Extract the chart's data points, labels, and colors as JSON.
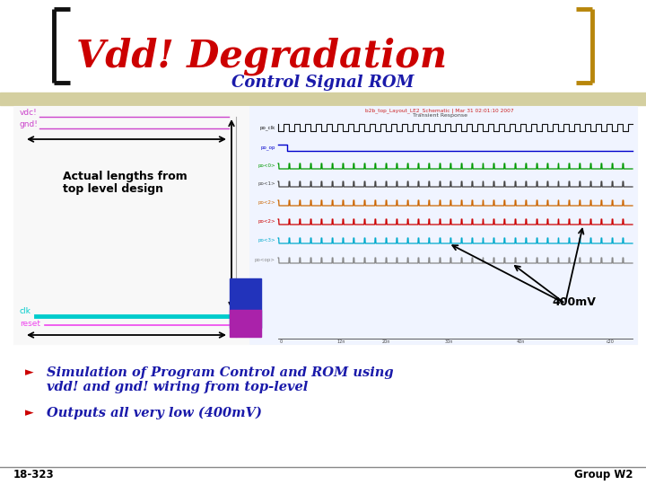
{
  "title": "Vdd! Degradation",
  "subtitle": "Control Signal ROM",
  "background_color": "#ffffff",
  "title_color": "#cc0000",
  "subtitle_color": "#1a1aaa",
  "bracket_color_gold": "#b8860b",
  "bracket_color_black": "#111111",
  "header_stripe_color": "#d4cfa0",
  "bullet1_line1": "Simulation of Program Control and ROM using",
  "bullet1_line2": "vdd! and gnd! wiring from top-level",
  "bullet2": "Outputs all very low (400mV)",
  "bullet_color": "#1a1aaa",
  "bullet_marker_color": "#cc0000",
  "label_400mv": "400mV",
  "footer_left": "18-323",
  "footer_right": "Group W2",
  "actual_lengths_text1": "Actual lengths from",
  "actual_lengths_text2": "top level design",
  "vdc_color": "#cc44cc",
  "gnd_color": "#cc44cc",
  "clk_color": "#00cccc",
  "reset_color": "#ee44ee",
  "chip_color1": "#2233bb",
  "chip_color2": "#aa22aa",
  "wave_bg_color": "#f0f4ff",
  "schematic_bg_color": "#f8f8f8"
}
